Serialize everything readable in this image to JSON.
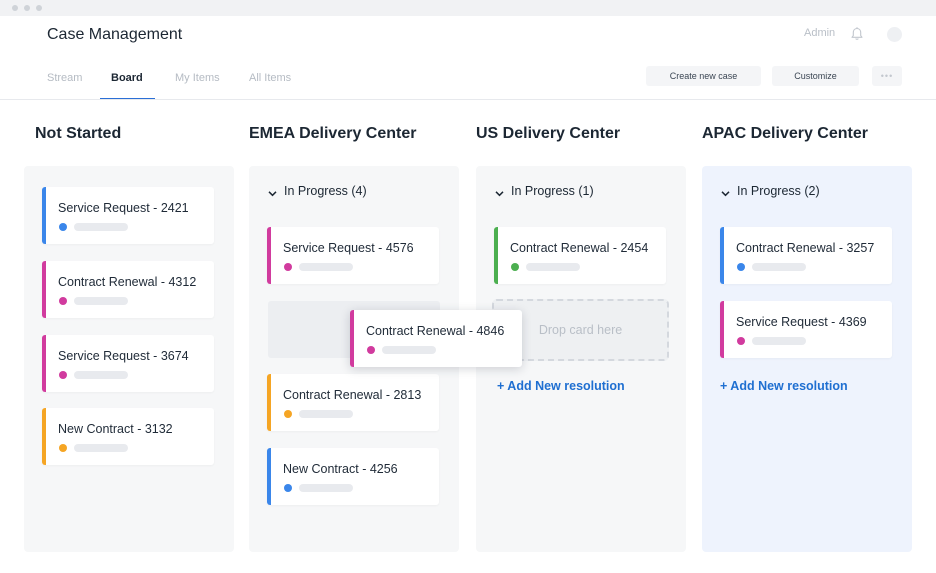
{
  "app": {
    "title": "Case Management"
  },
  "header": {
    "admin_label": "Admin"
  },
  "tabs": [
    {
      "label": "Stream",
      "active": false
    },
    {
      "label": "Board",
      "active": true
    },
    {
      "label": "My Items",
      "active": false
    },
    {
      "label": "All Items",
      "active": false
    }
  ],
  "toolbar": {
    "create_label": "Create new case",
    "customize_label": "Customize",
    "more_label": "•••"
  },
  "colors": {
    "blue": "#3a86ea",
    "magenta": "#d13b9e",
    "orange": "#f5a524",
    "green": "#4caf50",
    "link": "#1f6fd1",
    "active_tab": "#2b6fd6"
  },
  "columns": [
    {
      "title": "Not Started",
      "cards": [
        {
          "label": "Service Request - 2421",
          "color": "blue"
        },
        {
          "label": "Contract Renewal - 4312",
          "color": "magenta"
        },
        {
          "label": "Service Request - 3674",
          "color": "magenta"
        },
        {
          "label": "New Contract - 3132",
          "color": "orange"
        }
      ]
    },
    {
      "title": "EMEA Delivery Center",
      "group": "In Progress (4)",
      "cards": [
        {
          "label": "Service Request - 4576",
          "color": "magenta"
        },
        {
          "label": "Contract Renewal - 2813",
          "color": "orange"
        },
        {
          "label": "New Contract - 4256",
          "color": "blue"
        }
      ],
      "dragging_card": {
        "label": "Contract Renewal - 4846",
        "color": "magenta"
      }
    },
    {
      "title": "US Delivery Center",
      "group": "In Progress (1)",
      "cards": [
        {
          "label": "Contract Renewal - 2454",
          "color": "green"
        }
      ],
      "drop_zone": "Drop card here",
      "add_link": "+ Add New resolution"
    },
    {
      "title": "APAC Delivery Center",
      "group": "In Progress (2)",
      "cards": [
        {
          "label": "Contract Renewal - 3257",
          "color": "blue"
        },
        {
          "label": "Service Request - 4369",
          "color": "magenta"
        }
      ],
      "add_link": "+ Add New resolution"
    }
  ]
}
